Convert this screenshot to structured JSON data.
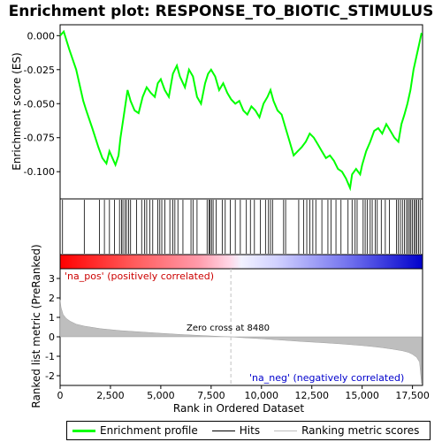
{
  "chart_data": {
    "type": "line",
    "title": "Enrichment plot: RESPONSE_TO_BIOTIC_STIMULUS",
    "top_panel": {
      "ylabel": "Enrichment score (ES)",
      "ylim": [
        -0.12,
        0.008
      ],
      "yticks": [
        0.0,
        -0.025,
        -0.05,
        -0.075,
        -0.1
      ],
      "ytick_labels": [
        "0.000",
        "-0.025",
        "-0.050",
        "-0.075",
        "-0.100"
      ],
      "series": [
        {
          "name": "Enrichment profile",
          "color": "#00ff00",
          "x": [
            0,
            180,
            450,
            800,
            1150,
            1300,
            1600,
            1900,
            2100,
            2300,
            2450,
            2600,
            2750,
            2900,
            3000,
            3100,
            3200,
            3350,
            3500,
            3700,
            3900,
            4100,
            4300,
            4500,
            4700,
            4850,
            5000,
            5200,
            5400,
            5600,
            5800,
            5950,
            6200,
            6400,
            6600,
            6800,
            7000,
            7200,
            7350,
            7500,
            7700,
            7900,
            8100,
            8300,
            8500,
            8700,
            8900,
            9100,
            9300,
            9500,
            9700,
            9900,
            10100,
            10300,
            10450,
            10600,
            10800,
            11000,
            11200,
            11400,
            11600,
            11800,
            12000,
            12200,
            12400,
            12600,
            12800,
            13000,
            13200,
            13400,
            13600,
            13800,
            14000,
            14200,
            14400,
            14500,
            14700,
            14900,
            15000,
            15200,
            15400,
            15600,
            15800,
            16000,
            16200,
            16400,
            16600,
            16800,
            16950,
            17100,
            17250,
            17400,
            17550,
            17700,
            17850,
            17950
          ],
          "y": [
            0.0,
            0.003,
            -0.01,
            -0.025,
            -0.048,
            -0.055,
            -0.068,
            -0.082,
            -0.09,
            -0.094,
            -0.085,
            -0.09,
            -0.095,
            -0.088,
            -0.075,
            -0.065,
            -0.055,
            -0.04,
            -0.048,
            -0.055,
            -0.057,
            -0.045,
            -0.038,
            -0.042,
            -0.045,
            -0.035,
            -0.032,
            -0.04,
            -0.045,
            -0.028,
            -0.022,
            -0.03,
            -0.038,
            -0.025,
            -0.03,
            -0.045,
            -0.05,
            -0.035,
            -0.028,
            -0.025,
            -0.03,
            -0.04,
            -0.035,
            -0.042,
            -0.047,
            -0.05,
            -0.048,
            -0.055,
            -0.058,
            -0.052,
            -0.055,
            -0.06,
            -0.05,
            -0.045,
            -0.04,
            -0.048,
            -0.055,
            -0.058,
            -0.068,
            -0.078,
            -0.088,
            -0.085,
            -0.082,
            -0.078,
            -0.072,
            -0.075,
            -0.08,
            -0.085,
            -0.09,
            -0.088,
            -0.092,
            -0.098,
            -0.1,
            -0.105,
            -0.112,
            -0.102,
            -0.098,
            -0.102,
            -0.095,
            -0.085,
            -0.078,
            -0.07,
            -0.068,
            -0.072,
            -0.065,
            -0.07,
            -0.075,
            -0.078,
            -0.065,
            -0.058,
            -0.05,
            -0.04,
            -0.025,
            -0.015,
            -0.005,
            0.002
          ]
        }
      ]
    },
    "hits": {
      "label": "Hits",
      "positions": [
        120,
        1200,
        1950,
        2200,
        2450,
        2700,
        2950,
        3050,
        3120,
        3220,
        3300,
        3400,
        3500,
        3800,
        4050,
        4200,
        4300,
        4450,
        4600,
        4850,
        4950,
        5050,
        5200,
        5450,
        5600,
        5700,
        5850,
        6100,
        6500,
        6600,
        6800,
        7300,
        7400,
        7450,
        7520,
        7600,
        7750,
        8050,
        8200,
        8450,
        8700,
        8950,
        9250,
        9450,
        9650,
        9950,
        10200,
        10350,
        10450,
        10550,
        11100,
        11200,
        11850,
        12100,
        12250,
        12400,
        12550,
        12700,
        13000,
        13300,
        13450,
        13700,
        13950,
        14300,
        14500,
        14650,
        14750,
        15050,
        15150,
        15250,
        15400,
        15500,
        15650,
        15750,
        15950,
        16150,
        16350,
        16700,
        16800,
        16900,
        17000,
        17100,
        17200,
        17280,
        17350,
        17420,
        17500,
        17580,
        17650,
        17720,
        17800,
        17880
      ]
    },
    "rank_bar": {
      "pos_color": "#ff0000",
      "neg_color": "#0000cc",
      "pos_label": "'na_pos' (positively correlated)",
      "neg_label": "'na_neg' (negatively correlated)"
    },
    "bottom_panel": {
      "xlabel": "Rank in Ordered Dataset",
      "ylabel": "Ranked list metric (PreRanked)",
      "xlim": [
        0,
        18000
      ],
      "ylim": [
        -2.5,
        3.5
      ],
      "xticks": [
        0,
        2500,
        5000,
        7500,
        10000,
        12500,
        15000,
        17500
      ],
      "xtick_labels": [
        "0",
        "2,500",
        "5,000",
        "7,500",
        "10,000",
        "12,500",
        "15,000",
        "17,500"
      ],
      "yticks": [
        3,
        2,
        1,
        0,
        -1,
        -2
      ],
      "ytick_labels": [
        "3",
        "2",
        "1",
        "0",
        "-1",
        "-2"
      ],
      "zero_cross_label": "Zero cross at 8480",
      "zero_cross": 8480,
      "metric_curve": {
        "x": [
          0,
          50,
          150,
          300,
          500,
          800,
          1200,
          2000,
          3000,
          4000,
          5000,
          6000,
          7000,
          8000,
          8480,
          9000,
          10000,
          11000,
          12000,
          13000,
          14000,
          15000,
          15500,
          16000,
          16500,
          17000,
          17300,
          17500,
          17700,
          17850,
          17950
        ],
        "y": [
          1.9,
          1.5,
          1.15,
          0.95,
          0.8,
          0.65,
          0.55,
          0.42,
          0.32,
          0.25,
          0.18,
          0.12,
          0.07,
          0.02,
          0.0,
          -0.04,
          -0.1,
          -0.17,
          -0.24,
          -0.3,
          -0.37,
          -0.45,
          -0.5,
          -0.56,
          -0.63,
          -0.72,
          -0.8,
          -0.9,
          -1.05,
          -1.3,
          -2.4
        ]
      }
    },
    "legend": [
      {
        "label": "Enrichment profile",
        "color": "#00ff00"
      },
      {
        "label": "Hits",
        "color": "#000000"
      },
      {
        "label": "Ranking metric scores",
        "color": "#bebebe"
      }
    ]
  }
}
